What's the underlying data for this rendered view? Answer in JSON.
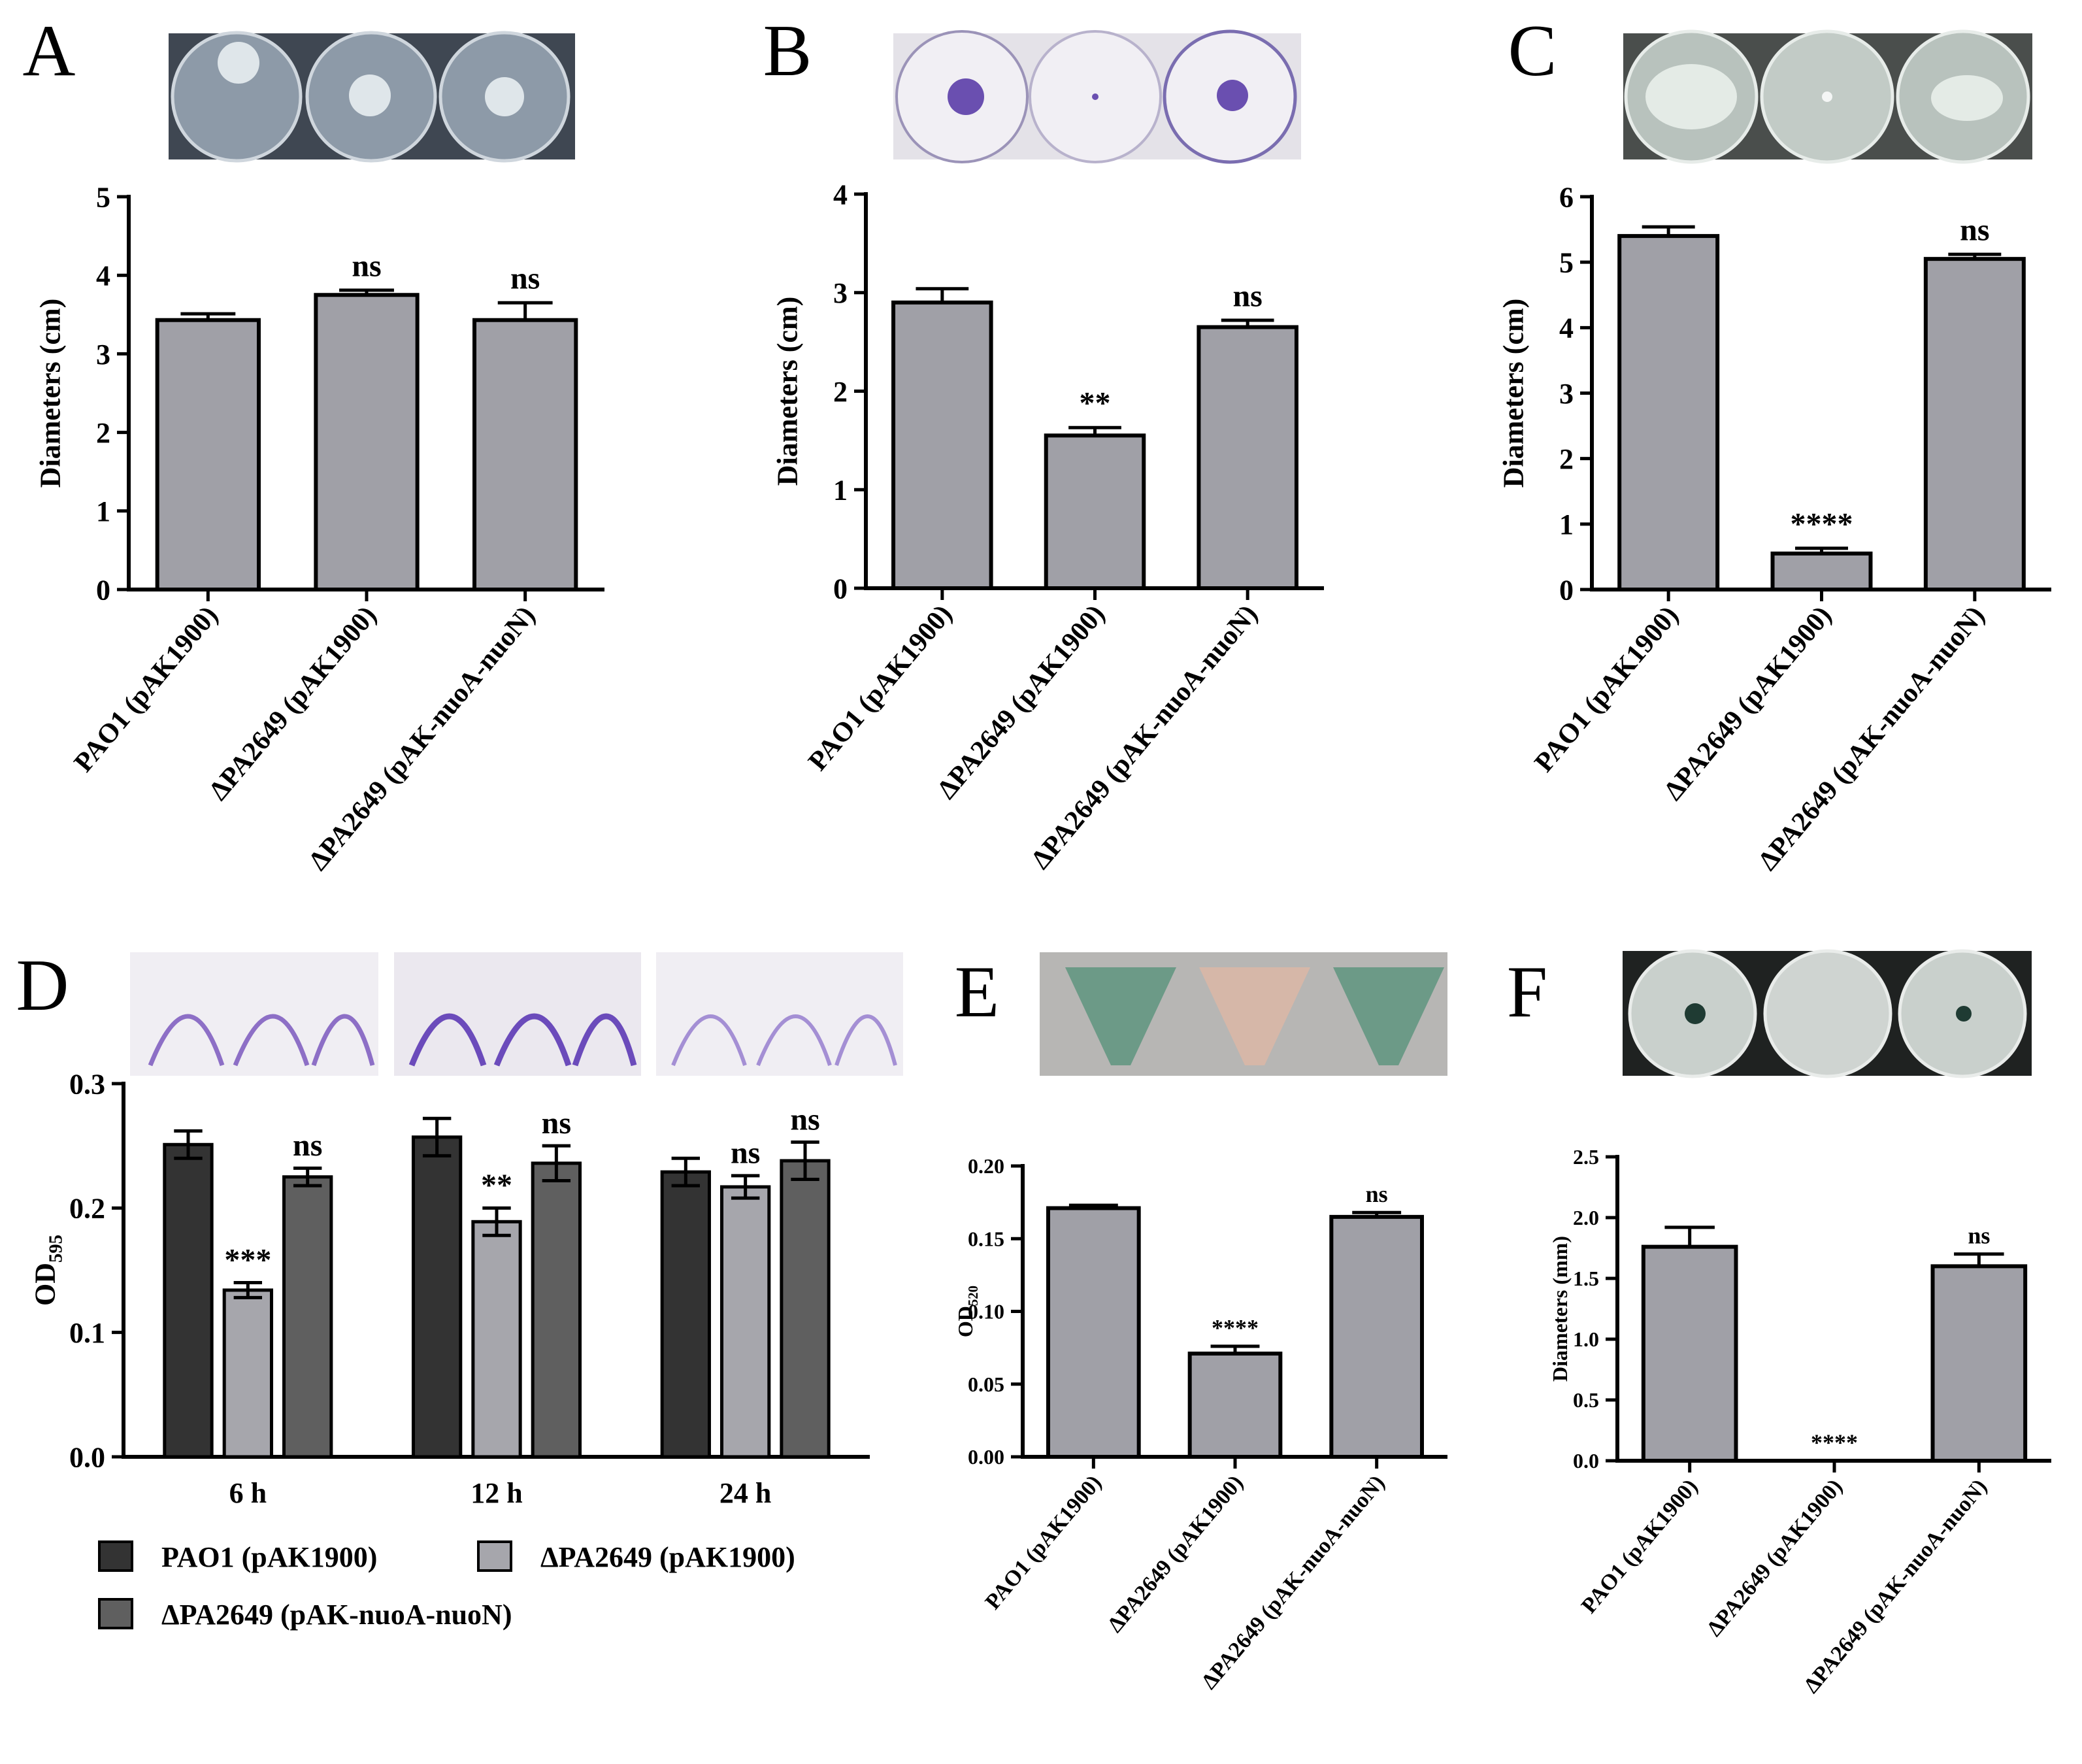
{
  "chart_data": [
    {
      "type": "bar",
      "panel": "A",
      "ylabel": "Diameters (cm)",
      "categories": [
        "PAO1 (pAK1900)",
        "ΔPA2649 (pAK1900)",
        "ΔPA2649 (pAK-nuoA-nuoN)"
      ],
      "values": [
        3.43,
        3.75,
        3.43
      ],
      "errors": [
        0.08,
        0.06,
        0.22
      ],
      "annotations": [
        null,
        "ns",
        "ns"
      ],
      "color": "#a0a0a7",
      "ylim": [
        0,
        5
      ],
      "yticks": [
        0,
        1,
        2,
        3,
        4,
        5
      ]
    },
    {
      "type": "bar",
      "panel": "B",
      "ylabel": "Diameters (cm)",
      "categories": [
        "PAO1 (pAK1900)",
        "ΔPA2649 (pAK1900)",
        "ΔPA2649 (pAK-nuoA-nuoN)"
      ],
      "values": [
        2.9,
        1.55,
        2.65
      ],
      "errors": [
        0.14,
        0.08,
        0.07
      ],
      "annotations": [
        null,
        "**",
        "ns"
      ],
      "color": "#a0a0a7",
      "ylim": [
        0,
        4
      ],
      "yticks": [
        0,
        1,
        2,
        3,
        4
      ]
    },
    {
      "type": "bar",
      "panel": "C",
      "ylabel": "Diameters (cm)",
      "categories": [
        "PAO1 (pAK1900)",
        "ΔPA2649 (pAK1900)",
        "ΔPA2649 (pAK-nuoA-nuoN)"
      ],
      "values": [
        5.4,
        0.55,
        5.05
      ],
      "errors": [
        0.14,
        0.08,
        0.07
      ],
      "annotations": [
        null,
        "****",
        "ns"
      ],
      "color": "#a0a0a7",
      "ylim": [
        0,
        6
      ],
      "yticks": [
        0,
        1,
        2,
        3,
        4,
        5,
        6
      ]
    },
    {
      "type": "groupedbar",
      "panel": "D",
      "ylabel": "OD",
      "ylabel_sub": "595",
      "categories": [
        "6 h",
        "12 h",
        "24 h"
      ],
      "series": [
        {
          "name": "PAO1 (pAK1900)",
          "color": "#333333",
          "values": [
            0.251,
            0.257,
            0.229
          ],
          "errors": [
            0.011,
            0.015,
            0.011
          ],
          "annotations": [
            null,
            null,
            null
          ]
        },
        {
          "name": "ΔPA2649 (pAK1900)",
          "color": "#a6a6ac",
          "values": [
            0.134,
            0.189,
            0.217
          ],
          "errors": [
            0.006,
            0.011,
            0.009
          ],
          "annotations": [
            "***",
            "**",
            "ns"
          ]
        },
        {
          "name": "ΔPA2649 (pAK-nuoA-nuoN)",
          "color": "#5f5f5f",
          "values": [
            0.225,
            0.236,
            0.238
          ],
          "errors": [
            0.007,
            0.014,
            0.015
          ],
          "annotations": [
            "ns",
            "ns",
            "ns"
          ]
        }
      ],
      "ylim": [
        0,
        0.3
      ],
      "yticks": [
        {
          "value": 0,
          "label": "0.0"
        },
        {
          "value": 0.1,
          "label": "0.1"
        },
        {
          "value": 0.2,
          "label": "0.2"
        },
        {
          "value": 0.3,
          "label": "0.3"
        }
      ]
    },
    {
      "type": "bar",
      "panel": "E",
      "ylabel": "OD",
      "ylabel_sub": "520",
      "categories": [
        "PAO1 (pAK1900)",
        "ΔPA2649 (pAK1900)",
        "ΔPA2649 (pAK-nuoA-nuoN)"
      ],
      "values": [
        0.171,
        0.071,
        0.165
      ],
      "errors": [
        0.002,
        0.005,
        0.003
      ],
      "annotations": [
        null,
        "****",
        "ns"
      ],
      "color": "#a0a0a7",
      "ylim": [
        0,
        0.2
      ],
      "yticks": [
        {
          "value": 0,
          "label": "0.00"
        },
        {
          "value": 0.05,
          "label": "0.05"
        },
        {
          "value": 0.1,
          "label": "0.10"
        },
        {
          "value": 0.15,
          "label": "0.15"
        },
        {
          "value": 0.2,
          "label": "0.20"
        }
      ]
    },
    {
      "type": "bar",
      "panel": "F",
      "ylabel": "Diameters (mm)",
      "categories": [
        "PAO1 (pAK1900)",
        "ΔPA2649 (pAK1900)",
        "ΔPA2649 (pAK-nuoA-nuoN)"
      ],
      "values": [
        1.76,
        0,
        1.6
      ],
      "errors": [
        0.16,
        0,
        0.1
      ],
      "annotations": [
        null,
        "****",
        "ns"
      ],
      "color": "#a0a0a7",
      "ylim": [
        0,
        2.5
      ],
      "yticks": [
        {
          "value": 0,
          "label": "0.0"
        },
        {
          "value": 0.5,
          "label": "0.5"
        },
        {
          "value": 1,
          "label": "1.0"
        },
        {
          "value": 1.5,
          "label": "1.5"
        },
        {
          "value": 2,
          "label": "2.0"
        },
        {
          "value": 2.5,
          "label": "2.5"
        }
      ]
    }
  ]
}
